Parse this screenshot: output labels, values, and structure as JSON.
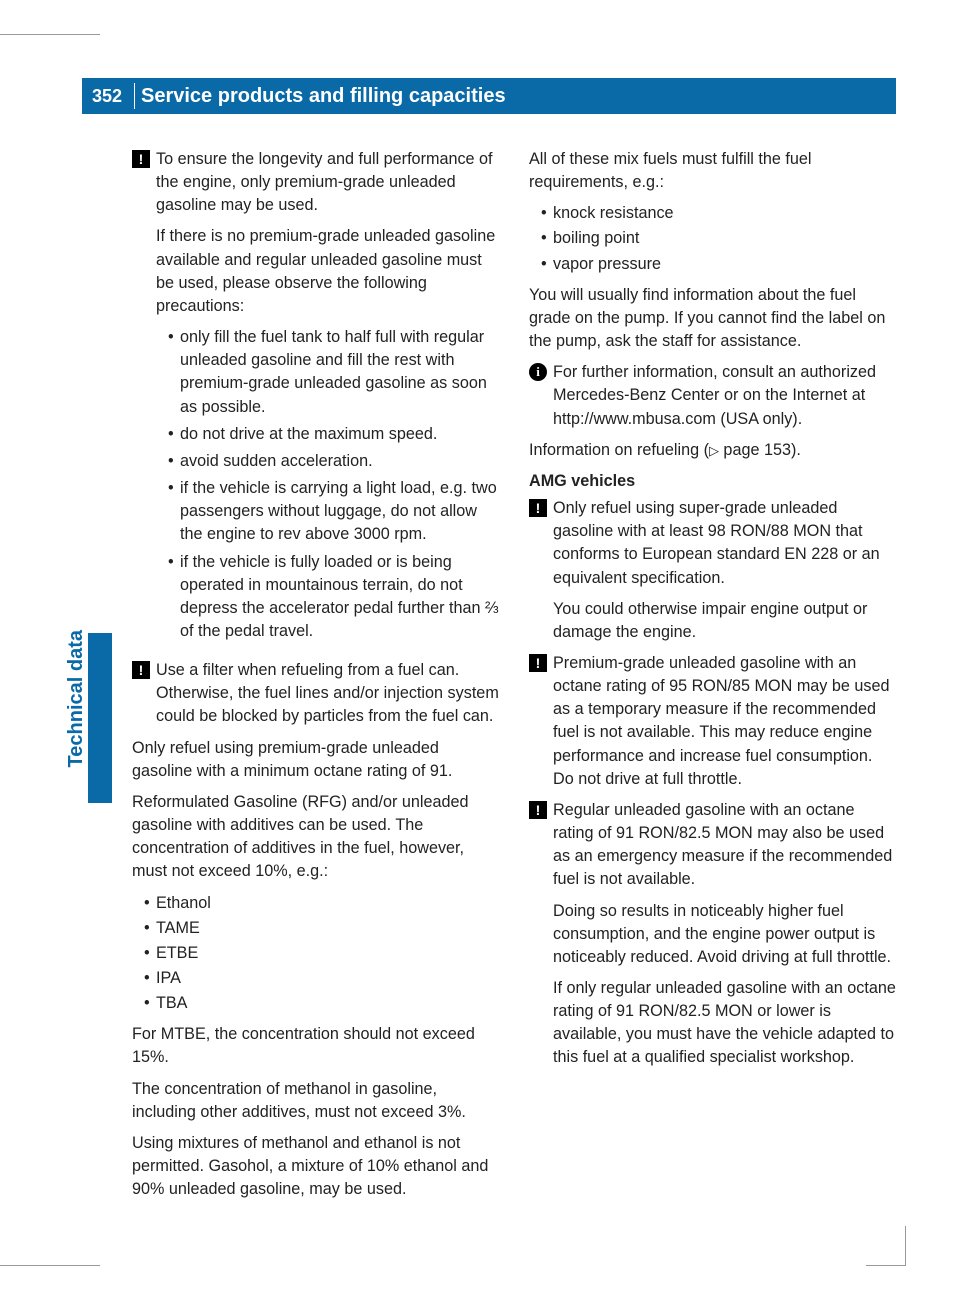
{
  "page_number": "352",
  "header_title": "Service products and filling capacities",
  "side_tab": "Technical data",
  "colors": {
    "header_bg": "#0a6aa8",
    "header_text": "#ffffff",
    "body_text": "#222222",
    "rule": "#999999"
  },
  "left": {
    "note1": {
      "p1": "To ensure the longevity and full performance of the engine, only premium-grade unleaded gasoline may be used.",
      "p2": "If there is no premium-grade unleaded gasoline available and regular unleaded gasoline must be used, please observe the following precautions:",
      "bullets": [
        "only fill the fuel tank to half full with regular unleaded gasoline and fill the rest with premium-grade unleaded gasoline as soon as possible.",
        "do not drive at the maximum speed.",
        "avoid sudden acceleration.",
        "if the vehicle is carrying a light load, e.g. two passengers without luggage, do not allow the engine to rev above 3000 rpm.",
        "if the vehicle is fully loaded or is being operated in mountainous terrain, do not depress the accelerator pedal further than ⅔ of the pedal travel."
      ]
    },
    "note2": "Use a filter when refueling from a fuel can. Otherwise, the fuel lines and/or injection system could be blocked by particles from the fuel can.",
    "p3": "Only refuel using premium-grade unleaded gasoline with a minimum octane rating of 91.",
    "p4": "Reformulated Gasoline (RFG) and/or unleaded gasoline with additives can be used. The concentration of additives in the fuel, however, must not exceed 10%, e.g.:",
    "additives": [
      "Ethanol",
      "TAME",
      "ETBE",
      "IPA",
      "TBA"
    ],
    "p5": "For MTBE, the concentration should not exceed 15%.",
    "p6": "The concentration of methanol in gasoline, including other additives, must not exceed 3%.",
    "p7": "Using mixtures of methanol and ethanol is not permitted. Gasohol, a mixture of 10% ethanol and 90% unleaded gasoline, may be used."
  },
  "right": {
    "p1": "All of these mix fuels must fulfill the fuel requirements, e.g.:",
    "reqs": [
      "knock resistance",
      "boiling point",
      "vapor pressure"
    ],
    "p2": "You will usually find information about the fuel grade on the pump. If you cannot find the label on the pump, ask the staff for assistance.",
    "info1": "For further information, consult an authorized Mercedes-Benz Center or on the Internet at http://www.mbusa.com (USA only).",
    "p3a": "Information on refueling (",
    "p3b": " page 153).",
    "amg_head": "AMG vehicles",
    "amg_n1": {
      "p1": "Only refuel using super-grade unleaded gasoline with at least 98 RON/88 MON that conforms to European standard EN 228 or an equivalent specification.",
      "p2": "You could otherwise impair engine output or damage the engine."
    },
    "amg_n2": "Premium-grade unleaded gasoline with an octane rating of 95 RON/85 MON may be used as a temporary measure if the recommended fuel is not available. This may reduce engine performance and increase fuel consumption. Do not drive at full throttle.",
    "amg_n3": {
      "p1": "Regular unleaded gasoline with an octane rating of 91 RON/82.5 MON may also be used as an emergency measure if the recommended fuel is not available.",
      "p2": "Doing so results in noticeably higher fuel consumption, and the engine power output is noticeably reduced. Avoid driving at full throttle.",
      "p3": "If only regular unleaded gasoline with an octane rating of 91 RON/82.5 MON or lower is available, you must have the vehicle adapted to this fuel at a qualified specialist workshop."
    }
  }
}
